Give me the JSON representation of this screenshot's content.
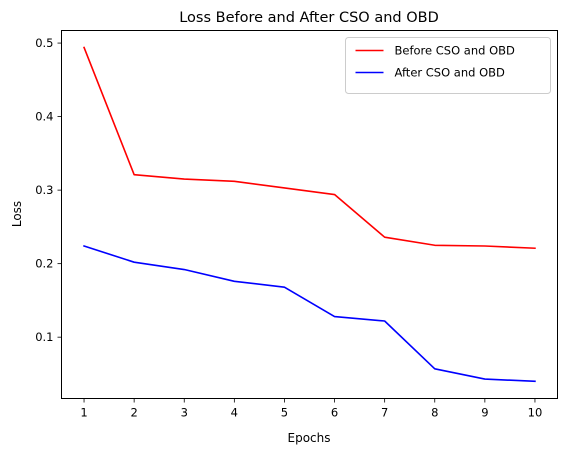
{
  "chart_data": {
    "type": "line",
    "title": "Loss Before and After CSO and OBD",
    "xlabel": "Epochs",
    "ylabel": "Loss",
    "x": [
      1,
      2,
      3,
      4,
      5,
      6,
      7,
      8,
      9,
      10
    ],
    "xticks": [
      1,
      2,
      3,
      4,
      5,
      6,
      7,
      8,
      9,
      10
    ],
    "yticks": [
      0.1,
      0.2,
      0.3,
      0.4,
      0.5
    ],
    "xlim": [
      0.55,
      10.45
    ],
    "ylim": [
      0.0166,
      0.5171
    ],
    "grid": false,
    "legend_position": "top-right",
    "series": [
      {
        "name": "Before CSO and OBD",
        "color": "#ff0000",
        "values": [
          0.494,
          0.321,
          0.315,
          0.312,
          0.303,
          0.294,
          0.236,
          0.225,
          0.224,
          0.221
        ]
      },
      {
        "name": "After CSO and OBD",
        "color": "#0000ff",
        "values": [
          0.224,
          0.202,
          0.192,
          0.176,
          0.168,
          0.128,
          0.122,
          0.057,
          0.043,
          0.04
        ]
      }
    ]
  }
}
